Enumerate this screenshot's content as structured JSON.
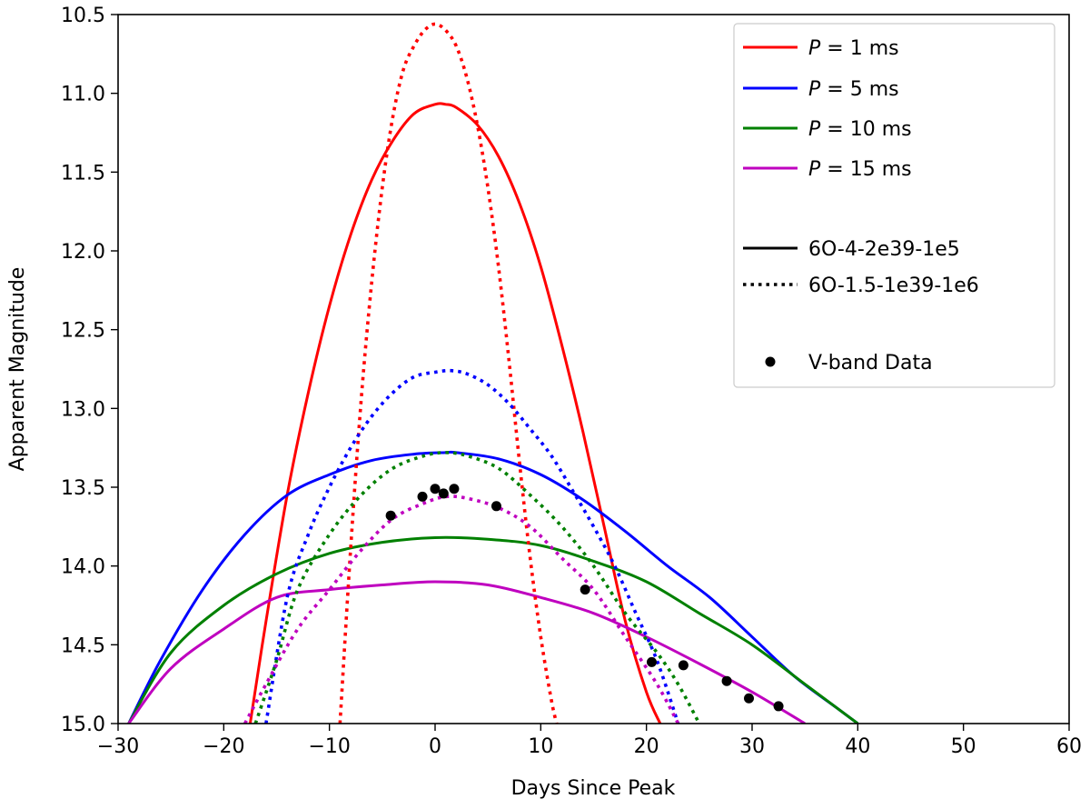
{
  "chart_data": {
    "type": "line",
    "title": "",
    "xlabel": "Days Since Peak",
    "ylabel": "Apparent Magnitude",
    "xlim": [
      -30,
      60
    ],
    "ylim": [
      15.0,
      10.5
    ],
    "y_inverted": true,
    "xticks": [
      -30,
      -20,
      -10,
      0,
      10,
      20,
      30,
      40,
      50,
      60
    ],
    "xtick_labels": [
      "−30",
      "−20",
      "−10",
      "0",
      "10",
      "20",
      "30",
      "40",
      "50",
      "60"
    ],
    "yticks": [
      10.5,
      11.0,
      11.5,
      12.0,
      12.5,
      13.0,
      13.5,
      14.0,
      14.5,
      15.0
    ],
    "ytick_labels": [
      "10.5",
      "11.0",
      "11.5",
      "12.0",
      "12.5",
      "13.0",
      "13.5",
      "14.0",
      "14.5",
      "15.0"
    ],
    "grid": false,
    "legend_position": "top-right",
    "legend": {
      "color_entries": [
        {
          "prefix": "P",
          "suffix": " = 1 ms",
          "color": "#ff0000"
        },
        {
          "prefix": "P",
          "suffix": " = 5 ms",
          "color": "#0000ff"
        },
        {
          "prefix": "P",
          "suffix": " = 10 ms",
          "color": "#008000"
        },
        {
          "prefix": "P",
          "suffix": " = 15 ms",
          "color": "#bf00bf"
        }
      ],
      "style_entries": [
        {
          "label": "6O-4-2e39-1e5",
          "style": "solid"
        },
        {
          "label": "6O-1.5-1e39-1e6",
          "style": "dotted"
        }
      ],
      "data_entry": {
        "label": "V-band Data"
      }
    },
    "series": [
      {
        "model": "6O-4-2e39-1e5",
        "period_ms": 1,
        "color": "#ff0000",
        "style": "solid",
        "x": [
          -17.5,
          -16,
          -14,
          -12,
          -10,
          -8,
          -6,
          -4,
          -2,
          0,
          1,
          2,
          4,
          6,
          8,
          10,
          12,
          14,
          16,
          18,
          20,
          21.3
        ],
        "y": [
          15.0,
          14.35,
          13.55,
          12.9,
          12.35,
          11.9,
          11.55,
          11.3,
          11.13,
          11.07,
          11.07,
          11.09,
          11.2,
          11.4,
          11.7,
          12.1,
          12.6,
          13.15,
          13.75,
          14.35,
          14.8,
          15.0
        ]
      },
      {
        "model": "6O-4-2e39-1e5",
        "period_ms": 5,
        "color": "#0000ff",
        "style": "solid",
        "x": [
          -29,
          -26,
          -22,
          -18,
          -14,
          -10,
          -6,
          -2,
          1,
          2,
          6,
          10,
          14,
          18,
          22,
          26,
          30,
          34,
          38,
          40
        ],
        "y": [
          15.0,
          14.6,
          14.15,
          13.8,
          13.55,
          13.42,
          13.33,
          13.29,
          13.28,
          13.28,
          13.32,
          13.42,
          13.58,
          13.78,
          14.0,
          14.2,
          14.45,
          14.7,
          14.9,
          15.0
        ]
      },
      {
        "model": "6O-4-2e39-1e5",
        "period_ms": 10,
        "color": "#008000",
        "style": "solid",
        "x": [
          -29,
          -25,
          -20,
          -15,
          -10,
          -5,
          0,
          5,
          10,
          15,
          20,
          25,
          30,
          35,
          40
        ],
        "y": [
          15.0,
          14.55,
          14.25,
          14.05,
          13.92,
          13.85,
          13.82,
          13.83,
          13.87,
          13.97,
          14.1,
          14.3,
          14.5,
          14.75,
          15.0
        ]
      },
      {
        "model": "6O-4-2e39-1e5",
        "period_ms": 15,
        "color": "#bf00bf",
        "style": "solid",
        "x": [
          -29,
          -25,
          -20,
          -15,
          -10,
          -5,
          0,
          5,
          10,
          15,
          20,
          25,
          30,
          35
        ],
        "y": [
          15.0,
          14.65,
          14.4,
          14.2,
          14.15,
          14.12,
          14.1,
          14.12,
          14.2,
          14.3,
          14.45,
          14.62,
          14.8,
          15.0
        ]
      },
      {
        "model": "6O-1.5-1e39-1e6",
        "period_ms": 1,
        "color": "#ff0000",
        "style": "dotted",
        "x": [
          -9,
          -8,
          -7,
          -6,
          -5,
          -4,
          -3,
          -2,
          -1,
          0,
          1,
          2,
          3,
          4,
          5,
          6,
          7,
          8,
          9,
          10,
          11,
          11.5
        ],
        "y": [
          15.0,
          13.9,
          12.95,
          12.2,
          11.6,
          11.15,
          10.85,
          10.7,
          10.6,
          10.56,
          10.6,
          10.7,
          10.9,
          11.2,
          11.6,
          12.1,
          12.7,
          13.35,
          13.95,
          14.45,
          14.85,
          15.0
        ]
      },
      {
        "model": "6O-1.5-1e39-1e6",
        "period_ms": 5,
        "color": "#0000ff",
        "style": "dotted",
        "x": [
          -16,
          -14,
          -12,
          -10,
          -8,
          -6,
          -4,
          -2,
          0,
          1.5,
          3,
          5,
          7,
          9,
          11,
          13,
          15,
          17,
          19,
          21,
          23
        ],
        "y": [
          15.0,
          14.2,
          13.8,
          13.5,
          13.25,
          13.05,
          12.9,
          12.8,
          12.77,
          12.76,
          12.78,
          12.85,
          12.97,
          13.13,
          13.3,
          13.52,
          13.75,
          14.0,
          14.3,
          14.6,
          15.0
        ]
      },
      {
        "model": "6O-1.5-1e39-1e6",
        "period_ms": 10,
        "color": "#008000",
        "style": "dotted",
        "x": [
          -17,
          -15,
          -13,
          -10,
          -7,
          -4,
          -1,
          1,
          3,
          6,
          9,
          12,
          15,
          18,
          21,
          23,
          25
        ],
        "y": [
          15.0,
          14.6,
          14.15,
          13.8,
          13.55,
          13.38,
          13.3,
          13.28,
          13.3,
          13.38,
          13.55,
          13.75,
          14.0,
          14.3,
          14.55,
          14.75,
          15.0
        ]
      },
      {
        "model": "6O-1.5-1e39-1e6",
        "period_ms": 15,
        "color": "#bf00bf",
        "style": "dotted",
        "x": [
          -18,
          -16,
          -13,
          -10,
          -7,
          -4,
          -1,
          1,
          3,
          6,
          9,
          12,
          15,
          18,
          21,
          23
        ],
        "y": [
          15.0,
          14.75,
          14.4,
          14.15,
          13.9,
          13.7,
          13.6,
          13.56,
          13.57,
          13.63,
          13.75,
          13.95,
          14.15,
          14.45,
          14.75,
          15.0
        ]
      }
    ],
    "data_points": {
      "label": "V-band Data",
      "color": "#000000",
      "x": [
        -4.2,
        -1.2,
        0.0,
        0.8,
        1.8,
        5.8,
        14.2,
        20.5,
        23.5,
        27.6,
        29.7,
        32.5
      ],
      "y": [
        13.68,
        13.56,
        13.51,
        13.54,
        13.51,
        13.62,
        14.15,
        14.61,
        14.63,
        14.73,
        14.84,
        14.89
      ]
    }
  }
}
